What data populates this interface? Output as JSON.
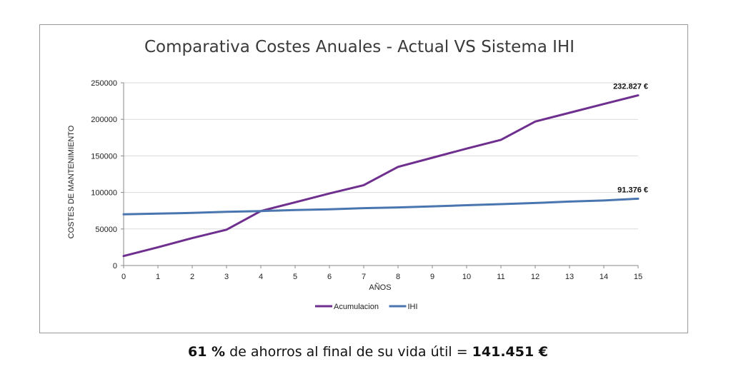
{
  "chart_data": {
    "type": "line",
    "title": "Comparativa Costes Anuales - Actual VS Sistema IHI",
    "xlabel": "AÑOS",
    "ylabel": "COSTES DE MANTENIMIENTO",
    "x": [
      0,
      1,
      2,
      3,
      4,
      5,
      6,
      7,
      8,
      9,
      10,
      11,
      12,
      13,
      14,
      15
    ],
    "xticks": [
      "0",
      "1",
      "2",
      "3",
      "4",
      "5",
      "6",
      "7",
      "8",
      "9",
      "10",
      "11",
      "12",
      "13",
      "14",
      "15"
    ],
    "ylim": [
      0,
      250000
    ],
    "yticks": [
      "0",
      "50000",
      "100000",
      "150000",
      "200000",
      "250000"
    ],
    "ytick_values": [
      0,
      50000,
      100000,
      150000,
      200000,
      250000
    ],
    "grid": true,
    "legend_position": "bottom",
    "series": [
      {
        "name": "Acumulacion",
        "color": "#6e2f8f",
        "values": [
          13000,
          25000,
          37500,
          49000,
          74500,
          86500,
          98500,
          110000,
          135000,
          147500,
          160000,
          172000,
          197000,
          209000,
          221000,
          232827
        ],
        "end_label": "232.827 €"
      },
      {
        "name": "IHI",
        "color": "#4a76b0",
        "values": [
          70000,
          71000,
          72000,
          73500,
          74500,
          76000,
          77000,
          78500,
          79500,
          81000,
          82500,
          84000,
          85500,
          87500,
          89000,
          91376
        ],
        "end_label": "91.376 €"
      }
    ]
  },
  "footer": {
    "percent": "61 %",
    "middle": " de ahorros al final de su vida útil = ",
    "amount": "141.451 €"
  }
}
